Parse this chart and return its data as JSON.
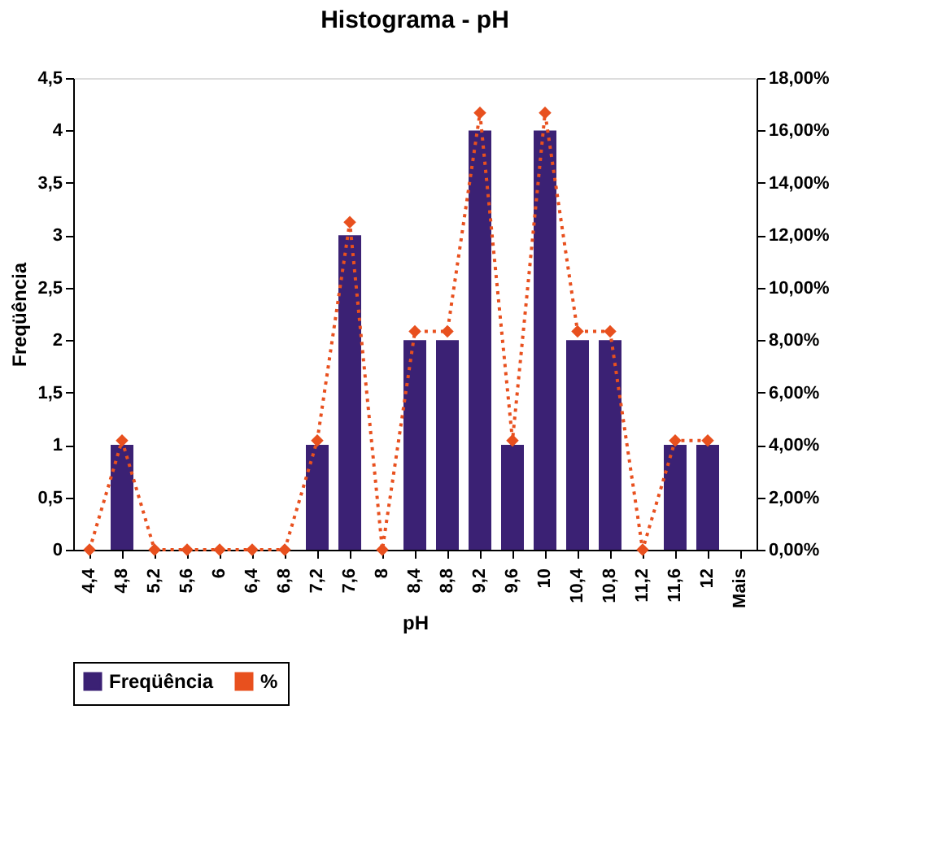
{
  "chart_data": {
    "type": "bar",
    "title": "Histograma - pH",
    "xlabel": "pH",
    "ylabel": "Freqüência",
    "categories": [
      "4,4",
      "4,8",
      "5,2",
      "5,6",
      "6",
      "6,4",
      "6,8",
      "7,2",
      "7,6",
      "8",
      "8,4",
      "8,8",
      "9,2",
      "9,6",
      "10",
      "10,4",
      "10,8",
      "11,2",
      "11,6",
      "12",
      "Mais"
    ],
    "series": [
      {
        "name": "Freqüência",
        "color": "#3b2174",
        "values": [
          0,
          1,
          0,
          0,
          0,
          0,
          0,
          1,
          3,
          0,
          2,
          2,
          4,
          1,
          4,
          2,
          2,
          0,
          1,
          1,
          0
        ]
      },
      {
        "name": "%",
        "type": "line",
        "axis": "y2",
        "color": "#e8501e",
        "marker": "diamond",
        "line_style": "dotted",
        "values": [
          0,
          4.17,
          0,
          0,
          0,
          0,
          0,
          4.17,
          12.5,
          0,
          8.33,
          8.33,
          16.67,
          4.17,
          16.67,
          8.33,
          8.33,
          0,
          4.17,
          4.17,
          null
        ]
      }
    ],
    "ylim": [
      0,
      4.5
    ],
    "yticks": [
      0,
      {
        "value": 0.5,
        "label": "0,5"
      },
      1,
      {
        "value": 1.5,
        "label": "1,5"
      },
      2,
      {
        "value": 2.5,
        "label": "2,5"
      },
      3,
      {
        "value": 3.5,
        "label": "3,5"
      },
      4,
      {
        "value": 4.5,
        "label": "4,5"
      }
    ],
    "y2lim": [
      0,
      18
    ],
    "y2ticks": [
      {
        "value": 0,
        "label": "0,00%"
      },
      {
        "value": 2,
        "label": "2,00%"
      },
      {
        "value": 4,
        "label": "4,00%"
      },
      {
        "value": 6,
        "label": "6,00%"
      },
      {
        "value": 8,
        "label": "8,00%"
      },
      {
        "value": 10,
        "label": "10,00%"
      },
      {
        "value": 12,
        "label": "12,00%"
      },
      {
        "value": 14,
        "label": "14,00%"
      },
      {
        "value": 16,
        "label": "16,00%"
      },
      {
        "value": 18,
        "label": "18,00%"
      }
    ],
    "grid": false,
    "legend": "bottom"
  }
}
